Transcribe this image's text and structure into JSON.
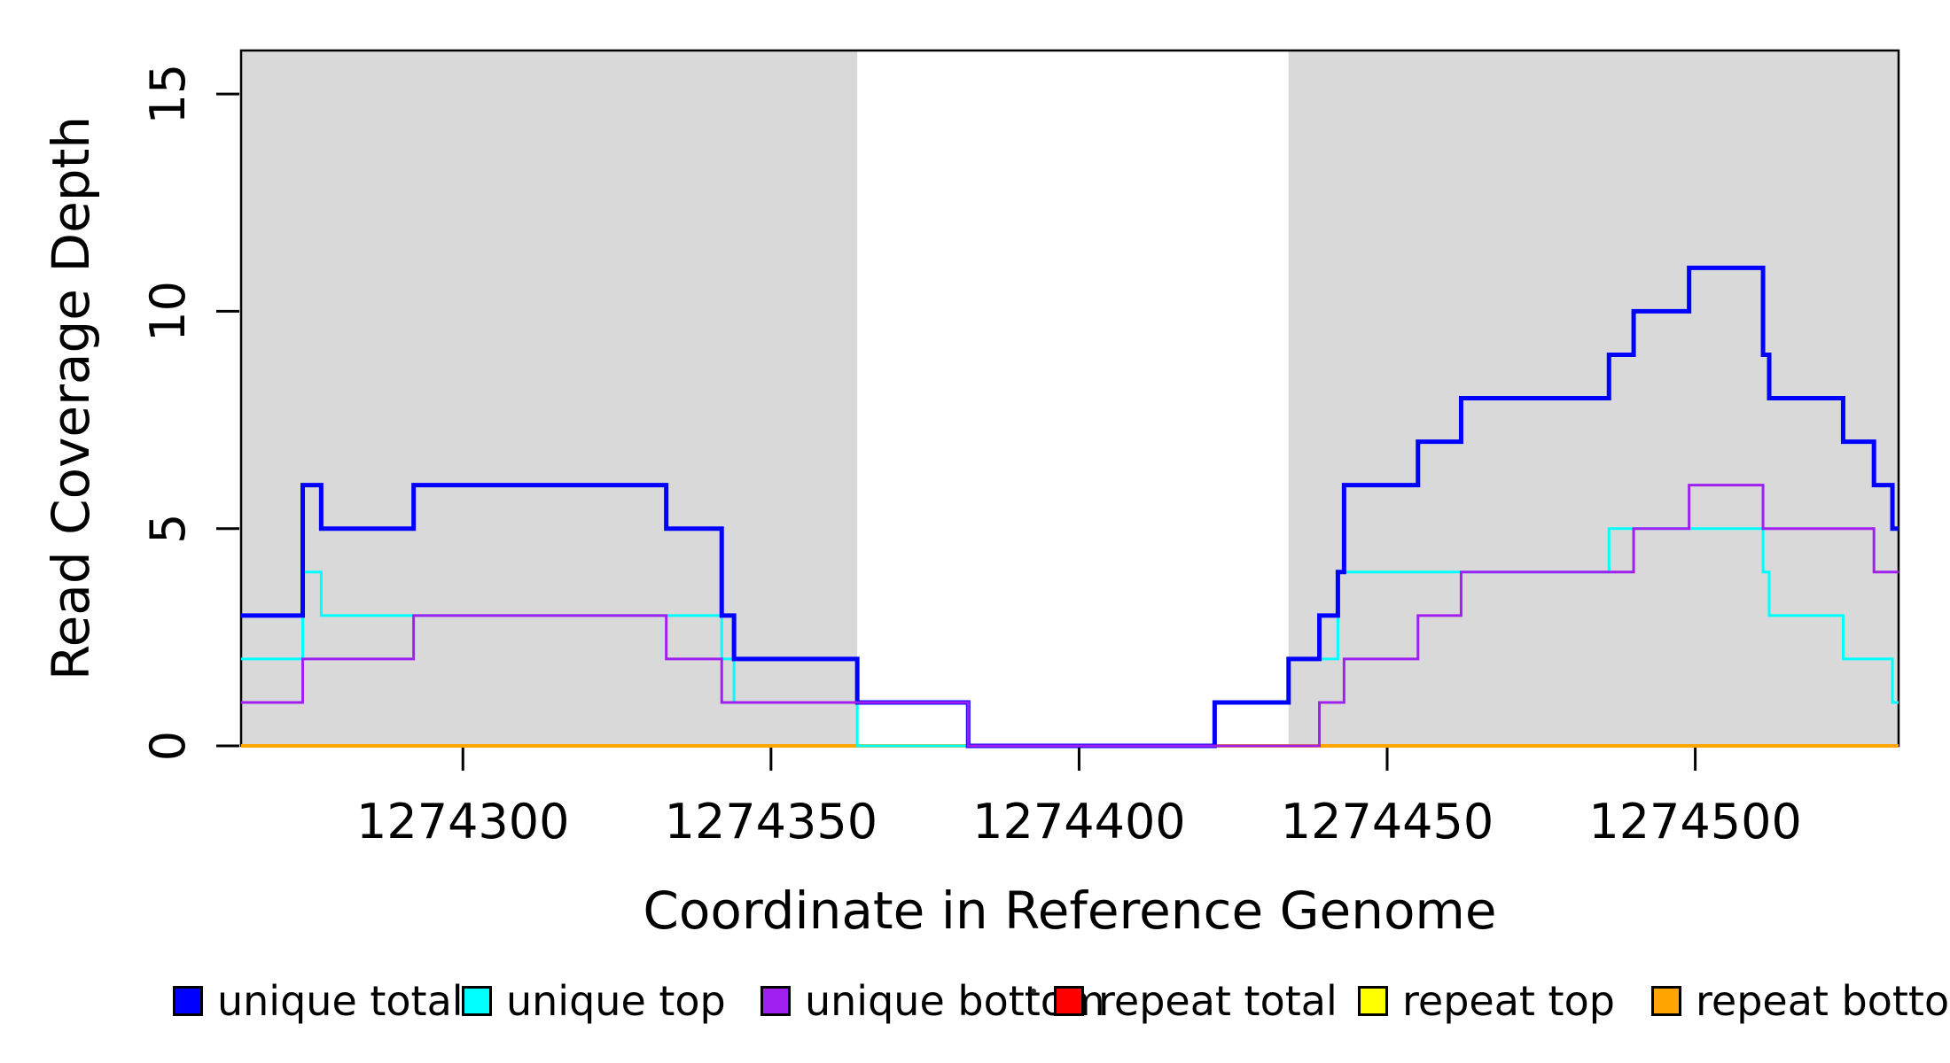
{
  "chart_data": {
    "type": "line",
    "subtype": "step-after",
    "title": "",
    "xlabel": "Coordinate in Reference Genome",
    "ylabel": "Read Coverage Depth",
    "x_domain": [
      1274264,
      1274533
    ],
    "y_domain": [
      0,
      16
    ],
    "grid": false,
    "legend_position": "bottom",
    "background_color": "#FFFFFF",
    "plot_border_color": "#000000",
    "shaded_region_color": "#D9D9D9",
    "shaded_regions": [
      {
        "from": 1274264,
        "to": 1274364
      },
      {
        "from": 1274434,
        "to": 1274533
      }
    ],
    "x_ticks": [
      {
        "value": 1274300,
        "label": "1274300"
      },
      {
        "value": 1274350,
        "label": "1274350"
      },
      {
        "value": 1274400,
        "label": "1274400"
      },
      {
        "value": 1274450,
        "label": "1274450"
      },
      {
        "value": 1274500,
        "label": "1274500"
      }
    ],
    "y_ticks": [
      {
        "value": 0,
        "label": "0"
      },
      {
        "value": 5,
        "label": "5"
      },
      {
        "value": 10,
        "label": "10"
      },
      {
        "value": 15,
        "label": "15"
      }
    ],
    "draw_order": [
      "repeat total",
      "repeat top",
      "repeat bottom",
      "unique top",
      "unique total",
      "unique bottom"
    ],
    "series": [
      {
        "name": "unique total",
        "color": "#0000FF",
        "line_width": 5,
        "points": [
          [
            1274264,
            3
          ],
          [
            1274274,
            6
          ],
          [
            1274277,
            5
          ],
          [
            1274292,
            6
          ],
          [
            1274333,
            5
          ],
          [
            1274342,
            3
          ],
          [
            1274344,
            2
          ],
          [
            1274364,
            1
          ],
          [
            1274382,
            0
          ],
          [
            1274422,
            1
          ],
          [
            1274434,
            2
          ],
          [
            1274439,
            3
          ],
          [
            1274442,
            4
          ],
          [
            1274443,
            6
          ],
          [
            1274455,
            7
          ],
          [
            1274462,
            8
          ],
          [
            1274486,
            9
          ],
          [
            1274490,
            10
          ],
          [
            1274499,
            11
          ],
          [
            1274511,
            9
          ],
          [
            1274512,
            8
          ],
          [
            1274524,
            7
          ],
          [
            1274529,
            6
          ],
          [
            1274532,
            5
          ]
        ]
      },
      {
        "name": "unique top",
        "color": "#00FFFF",
        "line_width": 3,
        "points": [
          [
            1274264,
            2
          ],
          [
            1274274,
            4
          ],
          [
            1274277,
            3
          ],
          [
            1274342,
            2
          ],
          [
            1274344,
            1
          ],
          [
            1274364,
            0
          ],
          [
            1274422,
            1
          ],
          [
            1274434,
            2
          ],
          [
            1274442,
            4
          ],
          [
            1274486,
            5
          ],
          [
            1274511,
            4
          ],
          [
            1274512,
            3
          ],
          [
            1274524,
            2
          ],
          [
            1274532,
            1
          ]
        ]
      },
      {
        "name": "unique bottom",
        "color": "#A020F0",
        "line_width": 3,
        "points": [
          [
            1274264,
            1
          ],
          [
            1274274,
            2
          ],
          [
            1274292,
            3
          ],
          [
            1274333,
            2
          ],
          [
            1274342,
            1
          ],
          [
            1274382,
            0
          ],
          [
            1274439,
            1
          ],
          [
            1274443,
            2
          ],
          [
            1274455,
            3
          ],
          [
            1274462,
            4
          ],
          [
            1274490,
            5
          ],
          [
            1274499,
            6
          ],
          [
            1274511,
            5
          ],
          [
            1274529,
            4
          ]
        ]
      },
      {
        "name": "repeat total",
        "color": "#FF0000",
        "line_width": 3,
        "points": [
          [
            1274264,
            0
          ]
        ]
      },
      {
        "name": "repeat top",
        "color": "#FFFF00",
        "line_width": 3,
        "points": [
          [
            1274264,
            0
          ]
        ]
      },
      {
        "name": "repeat bottom",
        "color": "#FFA500",
        "line_width": 4,
        "points": [
          [
            1274264,
            0
          ]
        ]
      }
    ]
  }
}
